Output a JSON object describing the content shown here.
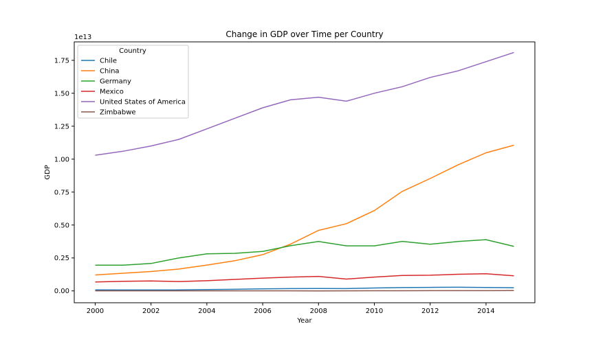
{
  "chart_data": {
    "type": "line",
    "title": "Change in GDP over Time per Country",
    "xlabel": "Year",
    "ylabel": "GDP",
    "y_offset_text": "1e13",
    "xlim": [
      1999.25,
      2015.75
    ],
    "ylim": [
      -0.09,
      1.89
    ],
    "y_scale_note": "values in units of 1e13",
    "x_ticks": [
      2000,
      2002,
      2004,
      2006,
      2008,
      2010,
      2012,
      2014
    ],
    "y_ticks": [
      0.0,
      0.25,
      0.5,
      0.75,
      1.0,
      1.25,
      1.5,
      1.75
    ],
    "y_tick_labels": [
      "0.00",
      "0.25",
      "0.50",
      "0.75",
      "1.00",
      "1.25",
      "1.50",
      "1.75"
    ],
    "grid": false,
    "legend_title": "Country",
    "legend_position": "top-left",
    "x": [
      2000,
      2001,
      2002,
      2003,
      2004,
      2005,
      2006,
      2007,
      2008,
      2009,
      2010,
      2011,
      2012,
      2013,
      2014,
      2015
    ],
    "series": [
      {
        "name": "Chile",
        "color": "#1f77b4",
        "values": [
          0.0078,
          0.0069,
          0.0069,
          0.0075,
          0.01,
          0.0123,
          0.0155,
          0.0173,
          0.018,
          0.0172,
          0.0218,
          0.0252,
          0.0267,
          0.0278,
          0.026,
          0.0243
        ]
      },
      {
        "name": "China",
        "color": "#ff7f0e",
        "values": [
          0.121,
          0.134,
          0.147,
          0.166,
          0.196,
          0.229,
          0.275,
          0.355,
          0.459,
          0.51,
          0.61,
          0.755,
          0.853,
          0.957,
          1.048,
          1.106
        ]
      },
      {
        "name": "Germany",
        "color": "#2ca02c",
        "values": [
          0.195,
          0.195,
          0.208,
          0.25,
          0.281,
          0.285,
          0.3,
          0.343,
          0.375,
          0.342,
          0.342,
          0.376,
          0.354,
          0.375,
          0.389,
          0.338
        ]
      },
      {
        "name": "Mexico",
        "color": "#d62728",
        "values": [
          0.068,
          0.073,
          0.075,
          0.071,
          0.077,
          0.087,
          0.097,
          0.105,
          0.11,
          0.09,
          0.105,
          0.117,
          0.119,
          0.126,
          0.13,
          0.115
        ]
      },
      {
        "name": "United States of America",
        "color": "#9467bd",
        "values": [
          1.03,
          1.06,
          1.1,
          1.15,
          1.23,
          1.31,
          1.39,
          1.45,
          1.47,
          1.44,
          1.5,
          1.55,
          1.62,
          1.67,
          1.74,
          1.81
        ]
      },
      {
        "name": "Zimbabwe",
        "color": "#8c564b",
        "values": [
          0.0007,
          0.0007,
          0.0006,
          0.0006,
          0.0006,
          0.0006,
          0.0005,
          0.0005,
          0.0004,
          0.0008,
          0.001,
          0.0014,
          0.0017,
          0.0019,
          0.0019,
          0.002
        ]
      }
    ]
  }
}
